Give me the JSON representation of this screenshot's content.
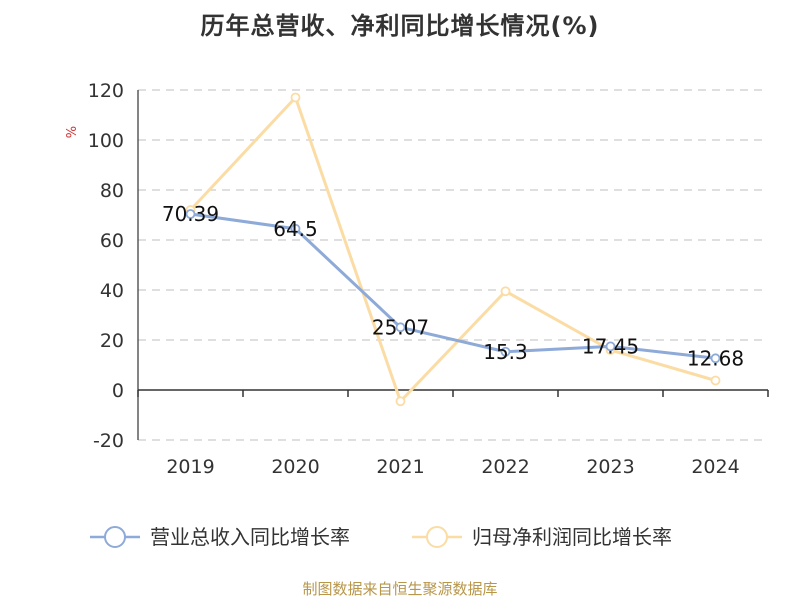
{
  "title": "历年总营收、净利同比增长情况(%)",
  "source": "制图数据来自恒生聚源数据库",
  "colors": {
    "revenue": "#8eaad8",
    "profit": "#fbdca4",
    "grid": "#cccccc",
    "unit": "#cc3333"
  },
  "chart_data": {
    "type": "line",
    "categories": [
      "2019",
      "2020",
      "2021",
      "2022",
      "2023",
      "2024"
    ],
    "ylabel": "%",
    "ylim": [
      -20,
      120
    ],
    "yticks": [
      -20,
      0,
      20,
      40,
      60,
      80,
      100,
      120
    ],
    "grid": true,
    "legend_position": "bottom",
    "series": [
      {
        "name": "营业总收入同比增长率",
        "values": [
          70.39,
          64.5,
          25.07,
          15.3,
          17.45,
          12.68
        ],
        "labels": [
          "70.39",
          "64.5",
          "25.07",
          "15.3",
          "17.45",
          "12.68"
        ]
      },
      {
        "name": "归母净利润同比增长率",
        "values": [
          72,
          117,
          -4.5,
          39.5,
          16,
          3.8
        ]
      }
    ]
  }
}
